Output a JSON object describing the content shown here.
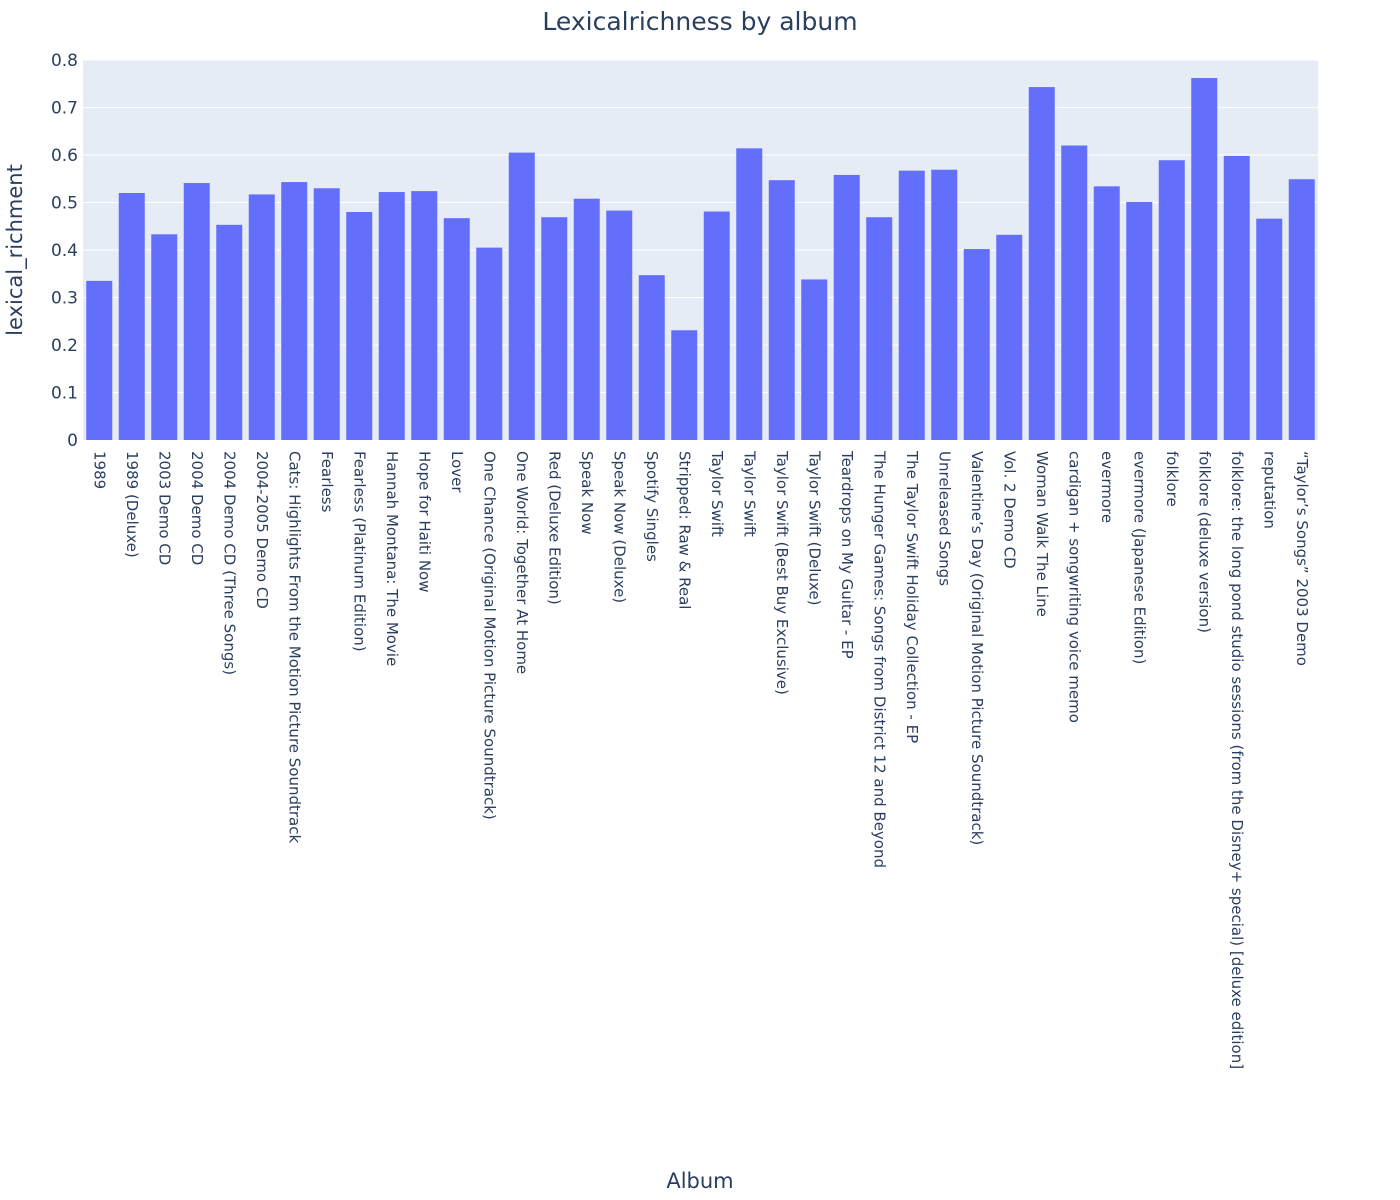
{
  "chart_data": {
    "type": "bar",
    "title": "Lexicalrichness by album",
    "xlabel": "Album",
    "ylabel": "lexical_richment",
    "ylim": [
      0,
      0.8
    ],
    "yticks": [
      0,
      0.1,
      0.2,
      0.3,
      0.4,
      0.5,
      0.6,
      0.7,
      0.8
    ],
    "ytick_labels": [
      "0",
      "0.1",
      "0.2",
      "0.3",
      "0.4",
      "0.5",
      "0.6",
      "0.7",
      "0.8"
    ],
    "grid": true,
    "bar_color": "#636efa",
    "plot_bg": "#e5ecf6",
    "categories": [
      "1989",
      "1989 (Deluxe)",
      "2003 Demo CD",
      "2004 Demo CD",
      "2004 Demo CD (Three Songs)",
      "2004-2005 Demo CD",
      "Cats: Highlights From the Motion Picture Soundtrack",
      "Fearless",
      "Fearless (Platinum Edition)",
      "Hannah Montana: The Movie",
      "Hope for Haiti Now",
      "Lover",
      "One Chance (Original Motion Picture Soundtrack)",
      "One World: Together At Home",
      "Red (Deluxe Edition)",
      "Speak Now",
      "Speak Now (Deluxe)",
      "Spotify Singles",
      "Stripped: Raw & Real",
      "Taylor Swift",
      "Taylor Swift",
      "Taylor Swift (Best Buy Exclusive)",
      "Taylor Swift (Deluxe)",
      "Teardrops on My Guitar - EP",
      "The Hunger Games: Songs from District 12 and Beyond",
      "The Taylor Swift Holiday Collection - EP",
      "Unreleased Songs",
      "Valentine’s Day (Original Motion Picture Soundtrack)",
      "Vol. 2 Demo CD",
      "Woman Walk The Line",
      "cardigan + songwriting voice memo",
      "evermore",
      "evermore (Japanese Edition)",
      "folklore",
      "folklore (deluxe version)",
      "folklore: the long pond studio sessions (from the Disney+ special) [deluxe edition]",
      "reputation",
      "“Taylor’s Songs” 2003 Demo"
    ],
    "values": [
      0.335,
      0.52,
      0.433,
      0.541,
      0.453,
      0.517,
      0.543,
      0.53,
      0.48,
      0.522,
      0.524,
      0.467,
      0.405,
      0.605,
      0.469,
      0.508,
      0.483,
      0.347,
      0.231,
      0.481,
      0.614,
      0.547,
      0.338,
      0.558,
      0.469,
      0.567,
      0.569,
      0.402,
      0.432,
      0.743,
      0.62,
      0.534,
      0.501,
      0.589,
      0.762,
      0.598,
      0.466,
      0.549
    ]
  }
}
